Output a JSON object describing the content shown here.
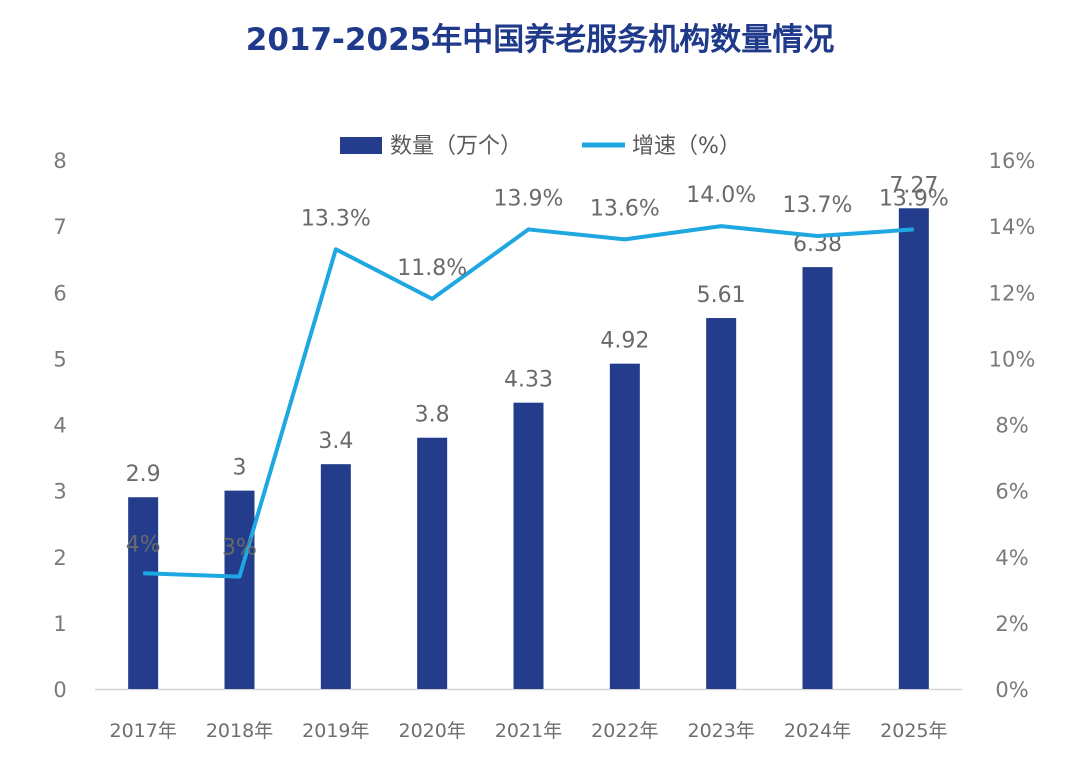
{
  "chart_data": {
    "type": "bar",
    "title": "2017-2025年中国养老服务机构数量情况",
    "categories": [
      "2017年",
      "2018年",
      "2019年",
      "2020年",
      "2021年",
      "2022年",
      "2023年",
      "2024年",
      "2025年"
    ],
    "series": [
      {
        "name": "数量（万个）",
        "type": "bar",
        "axis": "left",
        "values": [
          2.9,
          3,
          3.4,
          3.8,
          4.33,
          4.92,
          5.61,
          6.38,
          7.27
        ],
        "labels": [
          "2.9",
          "3",
          "3.4",
          "3.8",
          "4.33",
          "4.92",
          "5.61",
          "6.38",
          "7.27"
        ]
      },
      {
        "name": "增速（%）",
        "type": "line",
        "axis": "right",
        "values": [
          3.5,
          3.4,
          13.3,
          11.8,
          13.9,
          13.6,
          14.0,
          13.7,
          13.9
        ],
        "labels": [
          "4%",
          "3%",
          "13.3%",
          "11.8%",
          "13.9%",
          "13.6%",
          "14.0%",
          "13.7%",
          "13.9%"
        ]
      }
    ],
    "y_left": {
      "min": 0,
      "max": 8,
      "ticks": [
        "0",
        "1",
        "2",
        "3",
        "4",
        "5",
        "6",
        "7",
        "8"
      ]
    },
    "y_right": {
      "min": 0,
      "max": 16,
      "ticks": [
        "0%",
        "2%",
        "4%",
        "6%",
        "8%",
        "10%",
        "12%",
        "14%",
        "16%"
      ]
    },
    "grid": false,
    "legend": "top-center",
    "colors": {
      "bar": "#233d8c",
      "line": "#1ea7e0",
      "title": "#1f3a8a"
    }
  }
}
